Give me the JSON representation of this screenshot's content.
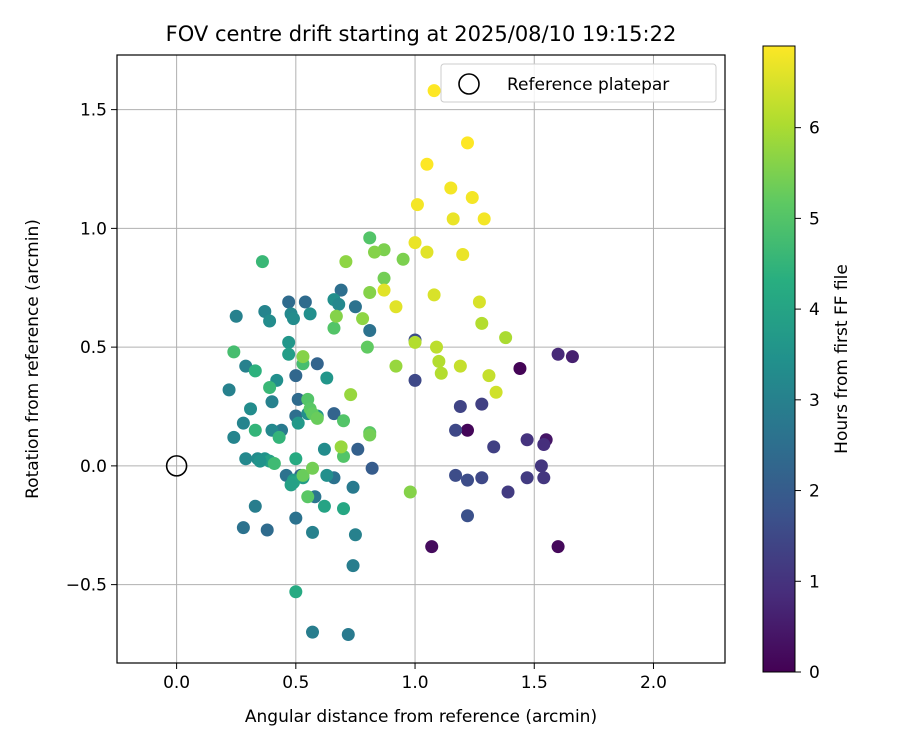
{
  "chart_data": {
    "type": "scatter",
    "title": "FOV centre drift starting at 2025/08/10 19:15:22",
    "xlabel": "Angular distance from reference (arcmin)",
    "ylabel": "Rotation from reference (arcmin)",
    "xlim": [
      -0.25,
      2.3
    ],
    "ylim": [
      -0.83,
      1.73
    ],
    "x_ticks": [
      0.0,
      0.5,
      1.0,
      1.5,
      2.0
    ],
    "x_tick_labels": [
      "0.0",
      "0.5",
      "1.0",
      "1.5",
      "2.0"
    ],
    "y_ticks": [
      -0.5,
      0.0,
      0.5,
      1.0,
      1.5
    ],
    "y_tick_labels": [
      "−0.5",
      "0.0",
      "0.5",
      "1.0",
      "1.5"
    ],
    "grid": true,
    "legend": {
      "position": "upper-right",
      "entries": [
        "Reference platepar"
      ]
    },
    "reference_point": {
      "x": 0.0,
      "y": 0.0,
      "label": "Reference platepar",
      "marker": "open-circle"
    },
    "colorbar": {
      "label": "Hours from first FF file",
      "colormap": "viridis",
      "range": [
        0,
        6.9
      ],
      "ticks": [
        0,
        1,
        2,
        3,
        4,
        5,
        6
      ],
      "tick_labels": [
        "0",
        "1",
        "2",
        "3",
        "4",
        "5",
        "6"
      ]
    },
    "points": [
      {
        "x": 1.44,
        "y": 0.41,
        "c": 0.05
      },
      {
        "x": 1.22,
        "y": 0.15,
        "c": 0.1
      },
      {
        "x": 1.07,
        "y": -0.34,
        "c": 0.2
      },
      {
        "x": 1.6,
        "y": -0.34,
        "c": 0.15
      },
      {
        "x": 1.55,
        "y": 0.11,
        "c": 0.4
      },
      {
        "x": 1.66,
        "y": 0.46,
        "c": 0.6
      },
      {
        "x": 1.6,
        "y": 0.47,
        "c": 0.8
      },
      {
        "x": 1.54,
        "y": 0.09,
        "c": 0.9
      },
      {
        "x": 1.47,
        "y": 0.11,
        "c": 1.0
      },
      {
        "x": 1.53,
        "y": 0.0,
        "c": 1.1
      },
      {
        "x": 1.54,
        "y": -0.05,
        "c": 1.1
      },
      {
        "x": 1.47,
        "y": -0.05,
        "c": 1.2
      },
      {
        "x": 1.39,
        "y": -0.11,
        "c": 1.2
      },
      {
        "x": 1.33,
        "y": 0.08,
        "c": 1.3
      },
      {
        "x": 1.28,
        "y": 0.26,
        "c": 1.3
      },
      {
        "x": 1.19,
        "y": 0.25,
        "c": 1.4
      },
      {
        "x": 1.17,
        "y": 0.15,
        "c": 1.5
      },
      {
        "x": 1.28,
        "y": -0.05,
        "c": 1.5
      },
      {
        "x": 1.22,
        "y": -0.06,
        "c": 1.6
      },
      {
        "x": 1.17,
        "y": -0.04,
        "c": 1.6
      },
      {
        "x": 1.22,
        "y": -0.21,
        "c": 1.7
      },
      {
        "x": 1.0,
        "y": 0.36,
        "c": 1.5
      },
      {
        "x": 1.0,
        "y": 0.53,
        "c": 1.6
      },
      {
        "x": 0.82,
        "y": -0.01,
        "c": 2.0
      },
      {
        "x": 0.76,
        "y": 0.07,
        "c": 2.1
      },
      {
        "x": 0.66,
        "y": 0.22,
        "c": 2.2
      },
      {
        "x": 0.59,
        "y": 0.43,
        "c": 2.2
      },
      {
        "x": 0.5,
        "y": 0.38,
        "c": 2.3
      },
      {
        "x": 0.47,
        "y": 0.69,
        "c": 2.4
      },
      {
        "x": 0.54,
        "y": 0.69,
        "c": 2.4
      },
      {
        "x": 0.69,
        "y": 0.74,
        "c": 2.5
      },
      {
        "x": 0.75,
        "y": 0.67,
        "c": 2.6
      },
      {
        "x": 0.81,
        "y": 0.57,
        "c": 2.6
      },
      {
        "x": 0.5,
        "y": 0.21,
        "c": 2.5
      },
      {
        "x": 0.51,
        "y": 0.28,
        "c": 2.4
      },
      {
        "x": 0.44,
        "y": 0.15,
        "c": 2.8
      },
      {
        "x": 0.46,
        "y": -0.04,
        "c": 2.6
      },
      {
        "x": 0.52,
        "y": -0.04,
        "c": 2.3
      },
      {
        "x": 0.58,
        "y": -0.13,
        "c": 2.7
      },
      {
        "x": 0.66,
        "y": -0.05,
        "c": 2.6
      },
      {
        "x": 0.74,
        "y": -0.09,
        "c": 2.8
      },
      {
        "x": 0.5,
        "y": -0.22,
        "c": 2.6
      },
      {
        "x": 0.38,
        "y": -0.27,
        "c": 2.4
      },
      {
        "x": 0.28,
        "y": -0.26,
        "c": 2.6
      },
      {
        "x": 0.33,
        "y": -0.17,
        "c": 2.9
      },
      {
        "x": 0.57,
        "y": -0.28,
        "c": 3.0
      },
      {
        "x": 0.75,
        "y": -0.29,
        "c": 3.0
      },
      {
        "x": 0.74,
        "y": -0.42,
        "c": 2.9
      },
      {
        "x": 0.57,
        "y": -0.7,
        "c": 2.9
      },
      {
        "x": 0.72,
        "y": -0.71,
        "c": 2.8
      },
      {
        "x": 0.22,
        "y": 0.32,
        "c": 3.0
      },
      {
        "x": 0.24,
        "y": 0.12,
        "c": 3.1
      },
      {
        "x": 0.28,
        "y": 0.18,
        "c": 3.1
      },
      {
        "x": 0.29,
        "y": 0.03,
        "c": 3.2
      },
      {
        "x": 0.34,
        "y": 0.03,
        "c": 3.3
      },
      {
        "x": 0.31,
        "y": 0.24,
        "c": 3.3
      },
      {
        "x": 0.37,
        "y": 0.03,
        "c": 3.5
      },
      {
        "x": 0.4,
        "y": 0.27,
        "c": 3.0
      },
      {
        "x": 0.4,
        "y": 0.15,
        "c": 3.2
      },
      {
        "x": 0.29,
        "y": 0.42,
        "c": 3.0
      },
      {
        "x": 0.25,
        "y": 0.63,
        "c": 3.0
      },
      {
        "x": 0.37,
        "y": 0.65,
        "c": 3.1
      },
      {
        "x": 0.39,
        "y": 0.61,
        "c": 3.3
      },
      {
        "x": 0.48,
        "y": 0.64,
        "c": 3.2
      },
      {
        "x": 0.49,
        "y": 0.62,
        "c": 3.3
      },
      {
        "x": 0.56,
        "y": 0.64,
        "c": 3.4
      },
      {
        "x": 0.66,
        "y": 0.7,
        "c": 3.4
      },
      {
        "x": 0.68,
        "y": 0.68,
        "c": 3.2
      },
      {
        "x": 0.42,
        "y": 0.36,
        "c": 3.4
      },
      {
        "x": 0.47,
        "y": 0.52,
        "c": 3.6
      },
      {
        "x": 0.47,
        "y": 0.47,
        "c": 3.8
      },
      {
        "x": 0.51,
        "y": 0.18,
        "c": 3.7
      },
      {
        "x": 0.55,
        "y": 0.22,
        "c": 3.4
      },
      {
        "x": 0.59,
        "y": 0.21,
        "c": 3.5
      },
      {
        "x": 0.63,
        "y": 0.37,
        "c": 3.6
      },
      {
        "x": 0.62,
        "y": 0.07,
        "c": 3.3
      },
      {
        "x": 0.63,
        "y": -0.04,
        "c": 3.4
      },
      {
        "x": 0.49,
        "y": -0.06,
        "c": 3.7
      },
      {
        "x": 0.53,
        "y": -0.05,
        "c": 3.8
      },
      {
        "x": 0.39,
        "y": 0.02,
        "c": 3.9
      },
      {
        "x": 0.35,
        "y": 0.02,
        "c": 3.5
      },
      {
        "x": 0.49,
        "y": -0.07,
        "c": 4.0
      },
      {
        "x": 0.48,
        "y": -0.08,
        "c": 3.9
      },
      {
        "x": 0.62,
        "y": -0.17,
        "c": 4.0
      },
      {
        "x": 0.7,
        "y": -0.18,
        "c": 4.1
      },
      {
        "x": 0.5,
        "y": -0.53,
        "c": 4.2
      },
      {
        "x": 0.5,
        "y": 0.03,
        "c": 4.2
      },
      {
        "x": 0.33,
        "y": 0.4,
        "c": 4.4
      },
      {
        "x": 0.33,
        "y": 0.15,
        "c": 4.5
      },
      {
        "x": 0.43,
        "y": 0.12,
        "c": 4.5
      },
      {
        "x": 0.39,
        "y": 0.33,
        "c": 4.6
      },
      {
        "x": 0.41,
        "y": 0.01,
        "c": 4.7
      },
      {
        "x": 0.36,
        "y": 0.86,
        "c": 4.6
      },
      {
        "x": 0.24,
        "y": 0.48,
        "c": 4.8
      },
      {
        "x": 0.53,
        "y": 0.43,
        "c": 4.8
      },
      {
        "x": 0.55,
        "y": 0.28,
        "c": 5.0
      },
      {
        "x": 0.56,
        "y": 0.24,
        "c": 5.1
      },
      {
        "x": 0.57,
        "y": 0.22,
        "c": 5.2
      },
      {
        "x": 0.59,
        "y": 0.2,
        "c": 5.3
      },
      {
        "x": 0.55,
        "y": -0.13,
        "c": 5.1
      },
      {
        "x": 0.53,
        "y": -0.04,
        "c": 5.3
      },
      {
        "x": 0.57,
        "y": -0.01,
        "c": 5.4
      },
      {
        "x": 0.7,
        "y": 0.04,
        "c": 5.0
      },
      {
        "x": 0.7,
        "y": 0.19,
        "c": 5.0
      },
      {
        "x": 0.66,
        "y": 0.58,
        "c": 5.0
      },
      {
        "x": 0.81,
        "y": 0.96,
        "c": 5.0
      },
      {
        "x": 0.8,
        "y": 0.5,
        "c": 5.2
      },
      {
        "x": 0.81,
        "y": 0.14,
        "c": 5.1
      },
      {
        "x": 0.81,
        "y": 0.13,
        "c": 5.4
      },
      {
        "x": 0.87,
        "y": 0.79,
        "c": 5.4
      },
      {
        "x": 0.87,
        "y": 0.91,
        "c": 5.5
      },
      {
        "x": 0.83,
        "y": 0.9,
        "c": 5.6
      },
      {
        "x": 0.81,
        "y": 0.73,
        "c": 5.6
      },
      {
        "x": 0.67,
        "y": 0.63,
        "c": 5.6
      },
      {
        "x": 0.71,
        "y": 0.86,
        "c": 5.7
      },
      {
        "x": 0.78,
        "y": 0.62,
        "c": 5.7
      },
      {
        "x": 0.73,
        "y": 0.3,
        "c": 5.8
      },
      {
        "x": 0.69,
        "y": 0.08,
        "c": 5.8
      },
      {
        "x": 0.53,
        "y": 0.46,
        "c": 5.6
      },
      {
        "x": 0.95,
        "y": 0.87,
        "c": 5.5
      },
      {
        "x": 0.98,
        "y": -0.11,
        "c": 5.6
      },
      {
        "x": 0.92,
        "y": 0.42,
        "c": 5.8
      },
      {
        "x": 1.38,
        "y": 0.54,
        "c": 6.0
      },
      {
        "x": 1.28,
        "y": 0.6,
        "c": 6.1
      },
      {
        "x": 1.1,
        "y": 0.44,
        "c": 6.1
      },
      {
        "x": 1.09,
        "y": 0.5,
        "c": 6.2
      },
      {
        "x": 1.11,
        "y": 0.39,
        "c": 6.1
      },
      {
        "x": 1.0,
        "y": 0.52,
        "c": 6.1
      },
      {
        "x": 1.19,
        "y": 0.42,
        "c": 6.3
      },
      {
        "x": 1.31,
        "y": 0.38,
        "c": 6.3
      },
      {
        "x": 1.34,
        "y": 0.31,
        "c": 6.4
      },
      {
        "x": 1.27,
        "y": 0.69,
        "c": 6.5
      },
      {
        "x": 1.08,
        "y": 0.72,
        "c": 6.5
      },
      {
        "x": 0.87,
        "y": 0.74,
        "c": 6.6
      },
      {
        "x": 0.92,
        "y": 0.67,
        "c": 6.6
      },
      {
        "x": 1.05,
        "y": 0.9,
        "c": 6.6
      },
      {
        "x": 1.0,
        "y": 0.94,
        "c": 6.7
      },
      {
        "x": 1.2,
        "y": 0.89,
        "c": 6.7
      },
      {
        "x": 1.16,
        "y": 1.04,
        "c": 6.7
      },
      {
        "x": 1.01,
        "y": 1.1,
        "c": 6.8
      },
      {
        "x": 1.29,
        "y": 1.04,
        "c": 6.8
      },
      {
        "x": 1.24,
        "y": 1.13,
        "c": 6.8
      },
      {
        "x": 1.15,
        "y": 1.17,
        "c": 6.8
      },
      {
        "x": 1.05,
        "y": 1.27,
        "c": 6.9
      },
      {
        "x": 1.22,
        "y": 1.36,
        "c": 6.9
      },
      {
        "x": 1.08,
        "y": 1.58,
        "c": 6.9
      }
    ]
  }
}
